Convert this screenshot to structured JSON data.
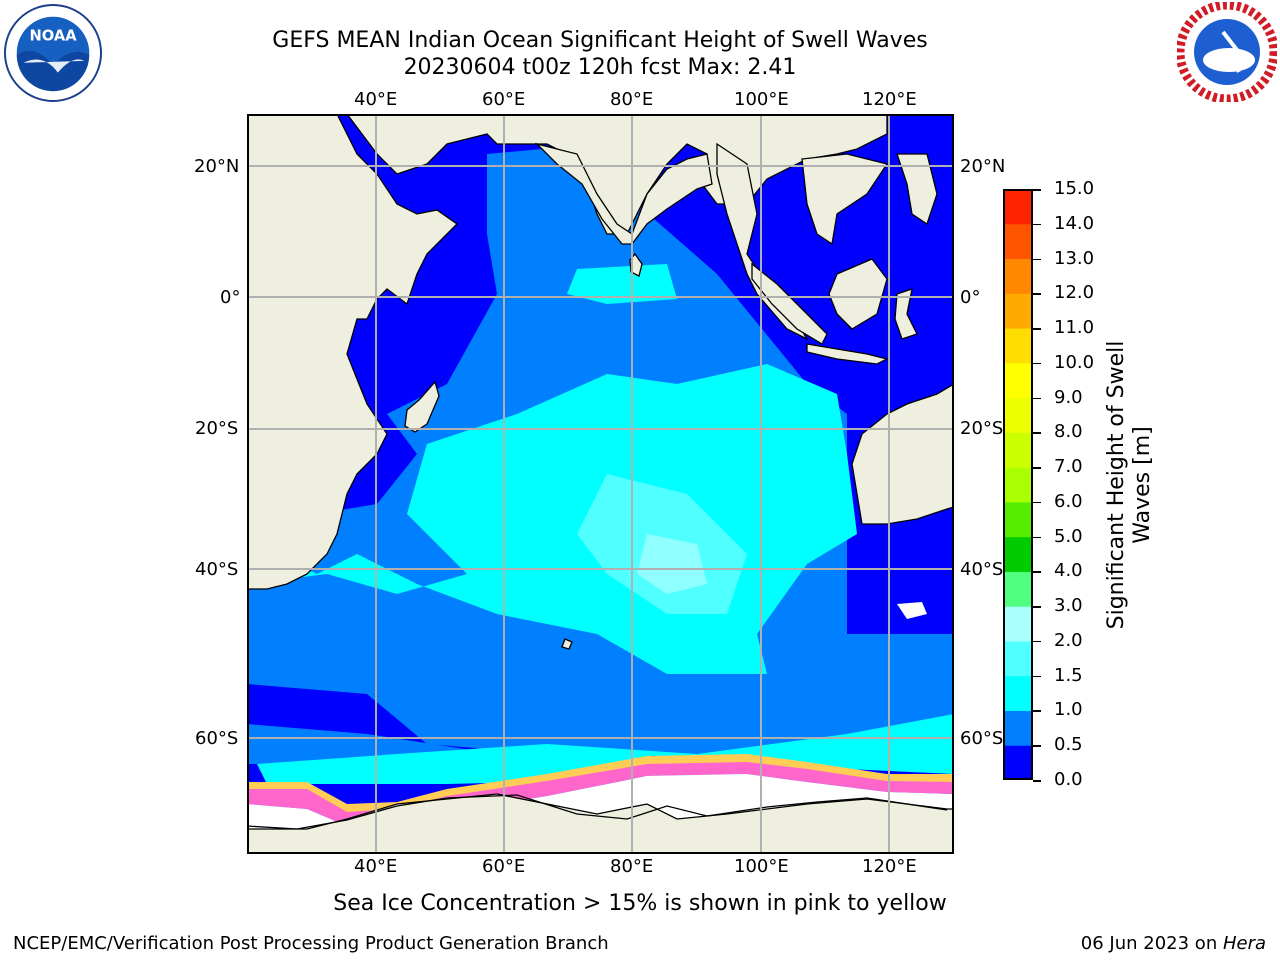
{
  "header": {
    "title": "GEFS MEAN Indian Ocean Significant Height of Swell Waves",
    "subtitle": "20230604 t00z 120h fcst   Max: 2.41"
  },
  "logos": {
    "left": {
      "text": "NOAA",
      "icon": "noaa-logo"
    },
    "right": {
      "icon": "national-weather-service-logo"
    }
  },
  "map": {
    "region": "Indian Ocean",
    "lon_ticks": [
      "40°E",
      "60°E",
      "80°E",
      "100°E",
      "120°E"
    ],
    "lat_ticks": [
      "20°N",
      "0°",
      "20°S",
      "40°S",
      "60°S"
    ],
    "gridlines": true,
    "colors": {
      "land": "#efefdf",
      "ice_shelf": "#ffffff",
      "coast": "#000000",
      "grid": "#b0b0b0",
      "sea_ice_edge": [
        "#ff66cc",
        "#ff99cc",
        "#ffcc55"
      ]
    }
  },
  "colorbar": {
    "label": "Significant Height of Swell Waves [m]",
    "ticks": [
      "15.0",
      "14.0",
      "13.0",
      "12.0",
      "11.0",
      "10.0",
      "9.0",
      "8.0",
      "7.0",
      "6.0",
      "5.0",
      "4.0",
      "3.0",
      "2.0",
      "1.5",
      "1.0",
      "0.5",
      "0.0"
    ],
    "levels": [
      0.0,
      0.5,
      1.0,
      1.5,
      2.0,
      3.0,
      4.0,
      5.0,
      6.0,
      7.0,
      8.0,
      9.0,
      10.0,
      11.0,
      12.0,
      13.0,
      14.0,
      15.0
    ],
    "colors": [
      "#0000ff",
      "#0080ff",
      "#00ffff",
      "#50ffff",
      "#aaffff",
      "#50ff80",
      "#00cc00",
      "#55ee00",
      "#aaff00",
      "#ccff00",
      "#eeff00",
      "#ffff00",
      "#ffdd00",
      "#ffaa00",
      "#ff8800",
      "#ff5500",
      "#ff2200",
      "#ff0000"
    ]
  },
  "footnote": "Sea Ice Concentration > 15% is shown in pink to yellow",
  "footer": {
    "left": "NCEP/EMC/Verification Post Processing Product Generation Branch",
    "right_prefix": "06 Jun 2023 on ",
    "right_host": "Hera"
  }
}
